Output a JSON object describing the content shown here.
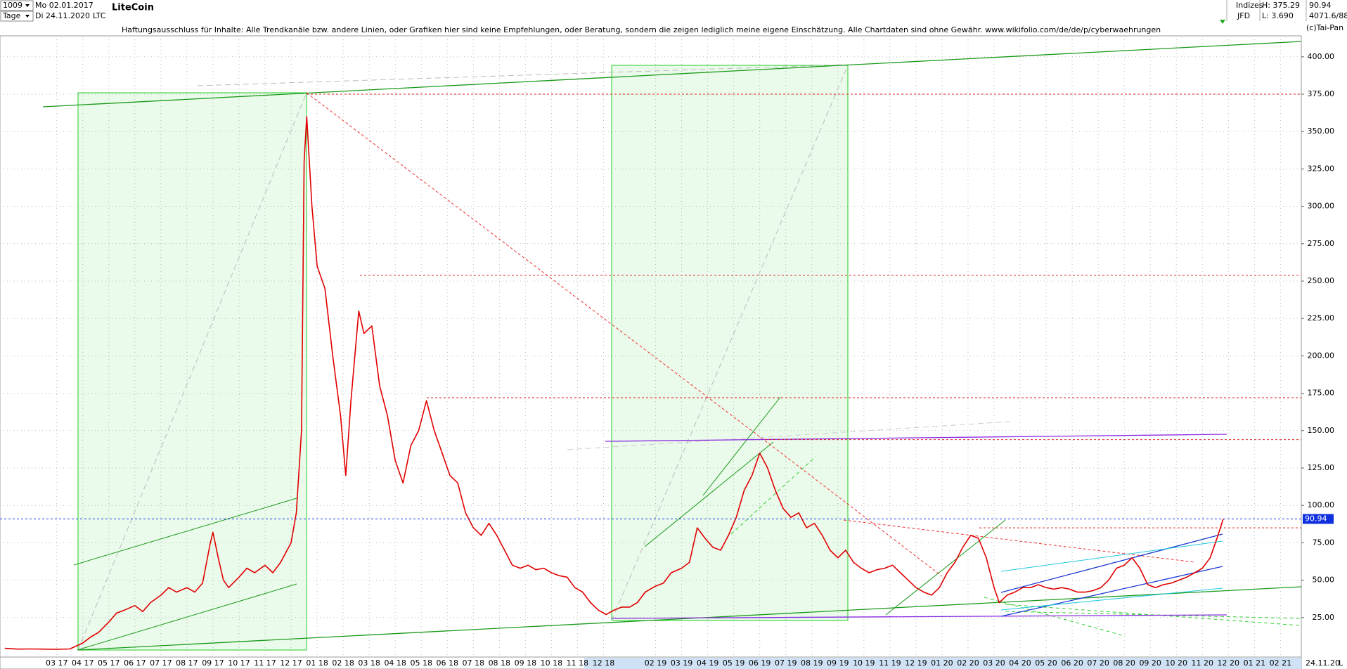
{
  "header": {
    "count": "1009",
    "period": "Tage",
    "start": "Mo 02.01.2017",
    "end": "Di 24.11.2020",
    "symbol": "LTC",
    "name": "LiteCoin",
    "disclaimer": "Haftungsausschluss für Inhalte: Alle Trendkanäle bzw. andere Linien, oder Grafiken hier sind keine Empfehlungen, oder Beratung, sondern die zeigen lediglich meine eigene Einschätzung. Alle Chartdaten sind ohne Gewähr.  www.wikifolio.com/de/de/p/cyberwaehrungen",
    "market": "Indizes",
    "source": "JFD",
    "high": "H: 375.29",
    "low": "L: 3.690",
    "volume": "4071.6/88",
    "copyright": "(c)Tai-Pan",
    "date_label": "24.11.20",
    "scale_label": "L"
  },
  "chart_data": {
    "type": "line",
    "color": "#e00000",
    "x": [
      -2,
      -1.5,
      -1,
      -0.5,
      0,
      0.5,
      1,
      1.3,
      1.6,
      2,
      2.3,
      2.6,
      3,
      3.3,
      3.6,
      4,
      4.3,
      4.6,
      5,
      5.3,
      5.6,
      5.9,
      6,
      6.2,
      6.4,
      6.6,
      7,
      7.3,
      7.6,
      8,
      8.3,
      8.6,
      9,
      9.2,
      9.4,
      9.5,
      9.6,
      9.8,
      10,
      10.3,
      10.6,
      10.9,
      11.1,
      11.3,
      11.6,
      11.8,
      12.1,
      12.4,
      12.7,
      13,
      13.3,
      13.6,
      13.9,
      14.2,
      14.5,
      14.8,
      15.1,
      15.4,
      15.7,
      16,
      16.3,
      16.6,
      16.9,
      17.2,
      17.5,
      17.8,
      18.1,
      18.4,
      18.7,
      19,
      19.3,
      19.6,
      19.9,
      20.2,
      20.5,
      20.8,
      21.1,
      21.4,
      21.7,
      22,
      22.3,
      22.6,
      23,
      23.3,
      23.6,
      24,
      24.3,
      24.6,
      24.9,
      25.2,
      25.5,
      25.8,
      26.1,
      26.4,
      26.7,
      27,
      27.3,
      27.6,
      27.9,
      28.2,
      28.5,
      28.8,
      29.1,
      29.4,
      29.7,
      30,
      30.3,
      30.6,
      30.9,
      31.2,
      31.5,
      31.8,
      32.1,
      32.4,
      32.7,
      33,
      33.3,
      33.6,
      33.9,
      34.2,
      34.5,
      34.8,
      35.1,
      35.4,
      35.7,
      36,
      36.2,
      36.5,
      36.8,
      37.1,
      37.4,
      37.7,
      38,
      38.3,
      38.6,
      38.9,
      39.2,
      39.5,
      39.8,
      40.1,
      40.4,
      40.7,
      41,
      41.3,
      41.6,
      41.9,
      42.2,
      42.5,
      42.8,
      43.1,
      43.4,
      43.7,
      44,
      44.3,
      44.6,
      44.8
    ],
    "values": [
      4.4,
      3.9,
      4,
      3.9,
      3.8,
      4,
      8,
      12,
      15,
      22,
      28,
      30,
      33,
      29,
      35,
      40,
      45,
      42,
      45,
      42,
      48,
      75,
      82,
      65,
      50,
      45,
      52,
      58,
      55,
      60,
      55,
      62,
      75,
      95,
      150,
      330,
      360,
      300,
      260,
      245,
      200,
      160,
      120,
      170,
      230,
      215,
      220,
      180,
      160,
      130,
      115,
      140,
      150,
      170,
      150,
      135,
      120,
      115,
      95,
      85,
      80,
      88,
      80,
      70,
      60,
      58,
      60,
      57,
      58,
      55,
      53,
      52,
      45,
      42,
      35,
      30,
      27,
      30,
      32,
      32,
      35,
      42,
      46,
      48,
      55,
      58,
      62,
      85,
      78,
      72,
      70,
      80,
      92,
      110,
      120,
      135,
      125,
      110,
      98,
      92,
      95,
      85,
      88,
      80,
      70,
      65,
      70,
      62,
      58,
      55,
      57,
      58,
      60,
      55,
      50,
      45,
      42,
      40,
      45,
      55,
      62,
      72,
      80,
      78,
      65,
      45,
      35,
      40,
      42,
      45,
      45,
      47,
      45,
      44,
      45,
      44,
      42,
      42,
      43,
      45,
      50,
      58,
      60,
      65,
      58,
      47,
      45,
      47,
      48,
      50,
      52,
      55,
      58,
      65,
      80,
      90.94
    ],
    "xlim": [
      -2.18,
      47.8
    ],
    "ylim": [
      0,
      414
    ],
    "xticks": [
      {
        "value": 0,
        "label": "03 17"
      },
      {
        "value": 1,
        "label": "04 17"
      },
      {
        "value": 2,
        "label": "05 17"
      },
      {
        "value": 3,
        "label": "06 17"
      },
      {
        "value": 4,
        "label": "07 17"
      },
      {
        "value": 5,
        "label": "08 17"
      },
      {
        "value": 6,
        "label": "09 17"
      },
      {
        "value": 7,
        "label": "10 17"
      },
      {
        "value": 8,
        "label": "11 17"
      },
      {
        "value": 9,
        "label": "12 17"
      },
      {
        "value": 10,
        "label": "01 18"
      },
      {
        "value": 11,
        "label": "02 18"
      },
      {
        "value": 12,
        "label": "03 18"
      },
      {
        "value": 13,
        "label": "04 18"
      },
      {
        "value": 14,
        "label": "05 18"
      },
      {
        "value": 15,
        "label": "06 18"
      },
      {
        "value": 16,
        "label": "07 18"
      },
      {
        "value": 17,
        "label": "08 18"
      },
      {
        "value": 18,
        "label": "09 18"
      },
      {
        "value": 19,
        "label": "10 18"
      },
      {
        "value": 20,
        "label": "11 18"
      },
      {
        "value": 21,
        "label": "12 18"
      },
      {
        "value": 23,
        "label": "02 19"
      },
      {
        "value": 24,
        "label": "03 19"
      },
      {
        "value": 25,
        "label": "04 19"
      },
      {
        "value": 26,
        "label": "05 19"
      },
      {
        "value": 27,
        "label": "06 19"
      },
      {
        "value": 28,
        "label": "07 19"
      },
      {
        "value": 29,
        "label": "08 19"
      },
      {
        "value": 30,
        "label": "09 19"
      },
      {
        "value": 31,
        "label": "10 19"
      },
      {
        "value": 32,
        "label": "11 19"
      },
      {
        "value": 33,
        "label": "12 19"
      },
      {
        "value": 34,
        "label": "01 20"
      },
      {
        "value": 35,
        "label": "02 20"
      },
      {
        "value": 36,
        "label": "03 20"
      },
      {
        "value": 37,
        "label": "04 20"
      },
      {
        "value": 38,
        "label": "05 20"
      },
      {
        "value": 39,
        "label": "06 20"
      },
      {
        "value": 40,
        "label": "07 20"
      },
      {
        "value": 41,
        "label": "08 20"
      },
      {
        "value": 42,
        "label": "09 20"
      },
      {
        "value": 43,
        "label": "10 20"
      },
      {
        "value": 44,
        "label": "11 20"
      },
      {
        "value": 45,
        "label": "12 20"
      },
      {
        "value": 46,
        "label": "01 21"
      },
      {
        "value": 47,
        "label": "02 21"
      }
    ],
    "yticks": [
      {
        "value": 25,
        "label": "25.00"
      },
      {
        "value": 50,
        "label": "50.00"
      },
      {
        "value": 75,
        "label": "75.00"
      },
      {
        "value": 100,
        "label": "100.00"
      },
      {
        "value": 125,
        "label": "125.00"
      },
      {
        "value": 150,
        "label": "150.00"
      },
      {
        "value": 175,
        "label": "175.00"
      },
      {
        "value": 200,
        "label": "200.00"
      },
      {
        "value": 225,
        "label": "225.00"
      },
      {
        "value": 250,
        "label": "250.00"
      },
      {
        "value": 275,
        "label": "275.00"
      },
      {
        "value": 300,
        "label": "300.00"
      },
      {
        "value": 325,
        "label": "325.00"
      },
      {
        "value": 350,
        "label": "350.00"
      },
      {
        "value": 375,
        "label": "375.00"
      },
      {
        "value": 400,
        "label": "400.00"
      }
    ],
    "grid": true,
    "hlines": [
      375,
      254,
      172,
      144,
      85
    ],
    "last": {
      "value": 90.94,
      "label": "90.94"
    }
  }
}
